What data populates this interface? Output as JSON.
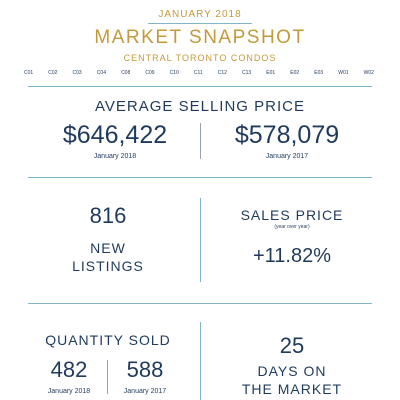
{
  "header": {
    "month": "JANUARY 2018",
    "title": "MARKET SNAPSHOT",
    "subtitle": "CENTRAL TORONTO CONDOS",
    "districts": [
      "C01",
      "C02",
      "C03",
      "C04",
      "C08",
      "C09",
      "C10",
      "C11",
      "C12",
      "C13",
      "E01",
      "E02",
      "E03",
      "W01",
      "W02"
    ]
  },
  "avg_price": {
    "heading": "AVERAGE SELLING PRICE",
    "value_2018": "$646,422",
    "label_2018": "January 2018",
    "value_2017": "$578,079",
    "label_2017": "January 2017"
  },
  "listings": {
    "number": "816",
    "line1": "NEW",
    "line2": "LISTINGS"
  },
  "sales_price": {
    "heading": "SALES PRICE",
    "note": "(year over year)",
    "change": "+11.82%"
  },
  "quantity": {
    "heading": "QUANTITY SOLD",
    "value_2018": "482",
    "label_2018": "January 2018",
    "value_2017": "588",
    "label_2017": "January 2017"
  },
  "days": {
    "number": "25",
    "line1": "DAYS ON",
    "line2": "THE MARKET"
  }
}
